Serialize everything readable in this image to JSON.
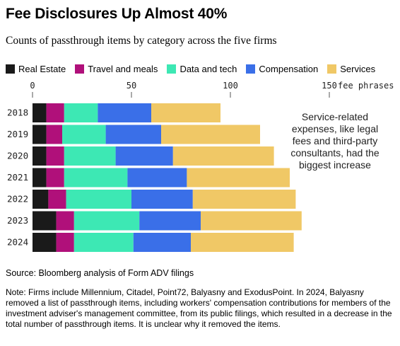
{
  "header": {
    "title": "Fee Disclosures Up Almost 40%",
    "subtitle": "Counts of passthrough items by category across the five firms"
  },
  "legend": [
    {
      "label": "Real Estate",
      "color": "#1a1a1a"
    },
    {
      "label": "Travel and meals",
      "color": "#b0107a"
    },
    {
      "label": "Data and tech",
      "color": "#3de8b4"
    },
    {
      "label": "Compensation",
      "color": "#3a6fe8"
    },
    {
      "label": "Services",
      "color": "#f0c866"
    }
  ],
  "annotation": "Service-related expenses, like legal fees and third-party consultants, had the biggest increase",
  "footer": {
    "source": "Source: Bloomberg analysis of Form ADV filings",
    "note": "Note: Firms include Millennium, Citadel, Point72, Balyasny and ExodusPoint. In 2024, Balyasny removed a list of passthrough items, including workers' compensation contributions for members of the investment adviser's management committee, from its public filings, which resulted in a decrease in the total number of passthrough items. It is unclear why it removed the items."
  },
  "chart_data": {
    "type": "bar",
    "orientation": "horizontal",
    "stacked": true,
    "categories": [
      "2018",
      "2019",
      "2020",
      "2021",
      "2022",
      "2023",
      "2024"
    ],
    "series": [
      {
        "name": "Real Estate",
        "values": [
          7,
          7,
          7,
          7,
          8,
          12,
          12
        ]
      },
      {
        "name": "Travel and meals",
        "values": [
          9,
          8,
          9,
          9,
          9,
          9,
          9
        ]
      },
      {
        "name": "Data and tech",
        "values": [
          17,
          22,
          26,
          32,
          33,
          33,
          30
        ]
      },
      {
        "name": "Compensation",
        "values": [
          27,
          28,
          29,
          30,
          31,
          31,
          29
        ]
      },
      {
        "name": "Services",
        "values": [
          35,
          50,
          51,
          52,
          52,
          51,
          52
        ]
      }
    ],
    "xlim": [
      0,
      150
    ],
    "xticks": [
      0,
      50,
      100,
      150
    ],
    "xunit": "fee phrases",
    "grid": false,
    "legend_position": "top"
  }
}
